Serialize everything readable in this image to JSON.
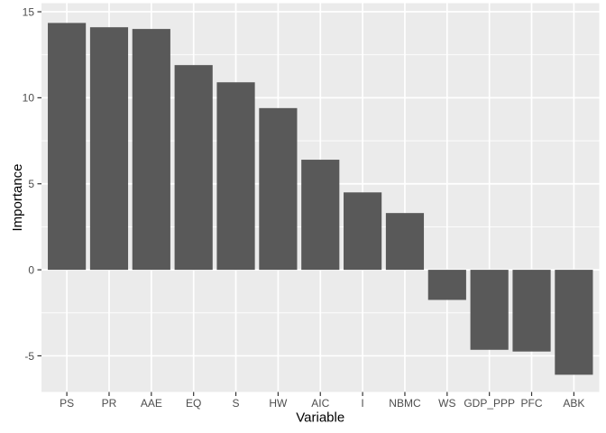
{
  "chart_data": {
    "type": "bar",
    "title": "",
    "xlabel": "Variable",
    "ylabel": "Importance",
    "categories": [
      "PS",
      "PR",
      "AAE",
      "EQ",
      "S",
      "HW",
      "AIC",
      "I",
      "NBMC",
      "WS",
      "GDP_PPP",
      "PFC",
      "ABK"
    ],
    "values": [
      14.35,
      14.1,
      14.0,
      11.9,
      10.9,
      9.4,
      6.4,
      4.5,
      3.3,
      -1.75,
      -4.65,
      -4.75,
      -6.1
    ],
    "ylim": [
      -7.1,
      15.5
    ],
    "y_ticks": [
      -5,
      0,
      5,
      10,
      15
    ],
    "y_tick_labels": [
      "-5",
      "0",
      "5",
      "10",
      "15"
    ],
    "y_minor_ticks": [
      -2.5,
      2.5,
      7.5,
      12.5
    ],
    "legend_position": "none",
    "grid": "white major+minor horizontal lines, white major vertical lines at category centers, drawn under bars",
    "colors": {
      "bar_fill": "#595959",
      "panel_bg": "#EBEBEB",
      "grid_line": "#FFFFFF",
      "tick_label": "#4D4D4D",
      "axis_title": "#000000",
      "tick_mark": "#333333",
      "figure_bg": "#FFFFFF"
    }
  }
}
